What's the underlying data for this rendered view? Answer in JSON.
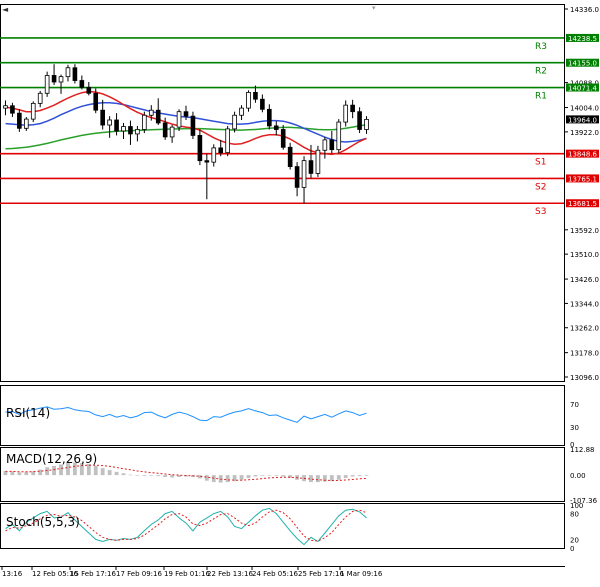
{
  "chart_data": {
    "type": "candlestick",
    "x_tick_labels": [
      "13:16",
      "12 Feb 05:16",
      "15 Feb 17:16",
      "17 Feb 09:16",
      "19 Feb 01:16",
      "22 Feb 13:16",
      "24 Feb 05:16",
      "25 Feb 17:16",
      "1 Mar 09:16"
    ],
    "y_tick_labels": [
      "14336.0",
      "14088.0",
      "14004.0",
      "13922.0",
      "13592.0",
      "13510.0",
      "13426.0",
      "13344.0",
      "13262.0",
      "13178.0",
      "13096.0"
    ],
    "y_range": [
      13096.0,
      14336.0
    ],
    "current_price": "13964.0",
    "levels": [
      {
        "name": "R3",
        "value": 14238.5,
        "label": "14238.5",
        "color": "#008000"
      },
      {
        "name": "R2",
        "value": 14155.0,
        "label": "14155.0",
        "color": "#008000"
      },
      {
        "name": "R1",
        "value": 14071.4,
        "label": "14071.4",
        "color": "#008000"
      },
      {
        "name": "S1",
        "value": 13848.6,
        "label": "13848.6",
        "color": "#e00000"
      },
      {
        "name": "S2",
        "value": 13765.1,
        "label": "13765.1",
        "color": "#e00000"
      },
      {
        "name": "S3",
        "value": 13681.5,
        "label": "13681.5",
        "color": "#e00000"
      }
    ],
    "candles": [
      {
        "o": 14002,
        "h": 14028,
        "l": 13978,
        "c": 14010
      },
      {
        "o": 14010,
        "h": 14020,
        "l": 13972,
        "c": 13985
      },
      {
        "o": 13985,
        "h": 13998,
        "l": 13922,
        "c": 13934
      },
      {
        "o": 13934,
        "h": 13972,
        "l": 13925,
        "c": 13965
      },
      {
        "o": 13965,
        "h": 14025,
        "l": 13955,
        "c": 14018
      },
      {
        "o": 14018,
        "h": 14060,
        "l": 14005,
        "c": 14052
      },
      {
        "o": 14052,
        "h": 14125,
        "l": 14040,
        "c": 14112
      },
      {
        "o": 14112,
        "h": 14150,
        "l": 14080,
        "c": 14090
      },
      {
        "o": 14090,
        "h": 14115,
        "l": 14050,
        "c": 14108
      },
      {
        "o": 14108,
        "h": 14148,
        "l": 14092,
        "c": 14138
      },
      {
        "o": 14138,
        "h": 14150,
        "l": 14085,
        "c": 14095
      },
      {
        "o": 14095,
        "h": 14112,
        "l": 14065,
        "c": 14072
      },
      {
        "o": 14072,
        "h": 14090,
        "l": 14045,
        "c": 14052
      },
      {
        "o": 14052,
        "h": 14068,
        "l": 13985,
        "c": 13995
      },
      {
        "o": 13995,
        "h": 14030,
        "l": 13930,
        "c": 13945
      },
      {
        "o": 13945,
        "h": 13975,
        "l": 13902,
        "c": 13962
      },
      {
        "o": 13962,
        "h": 13985,
        "l": 13910,
        "c": 13925
      },
      {
        "o": 13925,
        "h": 13952,
        "l": 13898,
        "c": 13940
      },
      {
        "o": 13940,
        "h": 13960,
        "l": 13878,
        "c": 13915
      },
      {
        "o": 13915,
        "h": 13942,
        "l": 13890,
        "c": 13930
      },
      {
        "o": 13930,
        "h": 13990,
        "l": 13918,
        "c": 13978
      },
      {
        "o": 13978,
        "h": 14012,
        "l": 13960,
        "c": 13995
      },
      {
        "o": 13995,
        "h": 14035,
        "l": 13945,
        "c": 13952
      },
      {
        "o": 13952,
        "h": 13970,
        "l": 13895,
        "c": 13905
      },
      {
        "o": 13905,
        "h": 13945,
        "l": 13885,
        "c": 13938
      },
      {
        "o": 13938,
        "h": 13998,
        "l": 13925,
        "c": 13990
      },
      {
        "o": 13990,
        "h": 14010,
        "l": 13962,
        "c": 13975
      },
      {
        "o": 13975,
        "h": 13990,
        "l": 13898,
        "c": 13910
      },
      {
        "o": 13910,
        "h": 13930,
        "l": 13810,
        "c": 13825
      },
      {
        "o": 13825,
        "h": 13848,
        "l": 13695,
        "c": 13820
      },
      {
        "o": 13820,
        "h": 13880,
        "l": 13805,
        "c": 13868
      },
      {
        "o": 13868,
        "h": 13895,
        "l": 13840,
        "c": 13852
      },
      {
        "o": 13852,
        "h": 13942,
        "l": 13840,
        "c": 13932
      },
      {
        "o": 13932,
        "h": 13990,
        "l": 13920,
        "c": 13978
      },
      {
        "o": 13978,
        "h": 14012,
        "l": 13962,
        "c": 14002
      },
      {
        "o": 14002,
        "h": 14062,
        "l": 13990,
        "c": 14055
      },
      {
        "o": 14055,
        "h": 14078,
        "l": 14020,
        "c": 14032
      },
      {
        "o": 14032,
        "h": 14048,
        "l": 13988,
        "c": 13998
      },
      {
        "o": 13998,
        "h": 14015,
        "l": 13930,
        "c": 13942
      },
      {
        "o": 13942,
        "h": 13958,
        "l": 13910,
        "c": 13930
      },
      {
        "o": 13930,
        "h": 13945,
        "l": 13862,
        "c": 13870
      },
      {
        "o": 13870,
        "h": 13885,
        "l": 13795,
        "c": 13805
      },
      {
        "o": 13805,
        "h": 13820,
        "l": 13705,
        "c": 13735
      },
      {
        "o": 13735,
        "h": 13840,
        "l": 13680,
        "c": 13825
      },
      {
        "o": 13825,
        "h": 13878,
        "l": 13765,
        "c": 13782
      },
      {
        "o": 13782,
        "h": 13875,
        "l": 13770,
        "c": 13860
      },
      {
        "o": 13860,
        "h": 13905,
        "l": 13832,
        "c": 13895
      },
      {
        "o": 13895,
        "h": 13925,
        "l": 13850,
        "c": 13862
      },
      {
        "o": 13862,
        "h": 13965,
        "l": 13850,
        "c": 13955
      },
      {
        "o": 13955,
        "h": 14028,
        "l": 13940,
        "c": 14012
      },
      {
        "o": 14012,
        "h": 14030,
        "l": 13968,
        "c": 13990
      },
      {
        "o": 13990,
        "h": 14005,
        "l": 13918,
        "c": 13930
      },
      {
        "o": 13930,
        "h": 13975,
        "l": 13915,
        "c": 13964
      }
    ],
    "ma_fast": [
      14005,
      14002,
      13996,
      13990,
      13990,
      13994,
      14002,
      14012,
      14024,
      14036,
      14046,
      14054,
      14058,
      14056,
      14050,
      14040,
      14028,
      14014,
      14000,
      13988,
      13978,
      13970,
      13964,
      13956,
      13948,
      13942,
      13938,
      13935,
      13928,
      13915,
      13902,
      13892,
      13884,
      13880,
      13882,
      13890,
      13900,
      13908,
      13912,
      13912,
      13908,
      13898,
      13884,
      13870,
      13858,
      13852,
      13848,
      13846,
      13850,
      13862,
      13876,
      13890,
      13900
    ],
    "ma_mid": [
      13950,
      13948,
      13946,
      13944,
      13946,
      13950,
      13958,
      13968,
      13980,
      13990,
      14000,
      14008,
      14014,
      14018,
      14020,
      14020,
      14018,
      14014,
      14008,
      14002,
      13996,
      13990,
      13986,
      13982,
      13978,
      13974,
      13972,
      13970,
      13966,
      13962,
      13958,
      13954,
      13950,
      13948,
      13948,
      13950,
      13954,
      13958,
      13960,
      13960,
      13958,
      13952,
      13944,
      13934,
      13924,
      13914,
      13904,
      13896,
      13890,
      13888,
      13890,
      13894,
      13900
    ],
    "ma_slow": [
      13865,
      13866,
      13868,
      13870,
      13874,
      13878,
      13883,
      13889,
      13895,
      13900,
      13905,
      13910,
      13914,
      13917,
      13920,
      13922,
      13924,
      13925,
      13926,
      13927,
      13928,
      13929,
      13930,
      13931,
      13932,
      13932,
      13933,
      13933,
      13933,
      13932,
      13931,
      13930,
      13929,
      13928,
      13928,
      13929,
      13930,
      13932,
      13934,
      13936,
      13937,
      13937,
      13936,
      13934,
      13932,
      13930,
      13929,
      13929,
      13931,
      13934,
      13938,
      13942,
      13946
    ],
    "rsi": {
      "label": "RSI(14)",
      "levels": [
        "70",
        "30",
        "0"
      ],
      "values": [
        56,
        57,
        52,
        58,
        60,
        63,
        65,
        61,
        62,
        64,
        60,
        58,
        57,
        51,
        48,
        52,
        47,
        50,
        46,
        49,
        55,
        56,
        50,
        46,
        52,
        56,
        53,
        48,
        42,
        41,
        48,
        47,
        52,
        56,
        58,
        62,
        58,
        55,
        50,
        51,
        46,
        42,
        38,
        49,
        44,
        48,
        52,
        47,
        53,
        58,
        55,
        50,
        54
      ]
    },
    "macd": {
      "label": "MACD(12,26,9)",
      "ticks": [
        "112.88",
        "0.00",
        "-107.36"
      ],
      "histogram": [
        18,
        16,
        12,
        13,
        16,
        24,
        34,
        40,
        46,
        52,
        54,
        52,
        48,
        40,
        30,
        22,
        14,
        8,
        2,
        -2,
        -3,
        -2,
        -4,
        -8,
        -10,
        -8,
        -6,
        -8,
        -14,
        -24,
        -30,
        -32,
        -30,
        -26,
        -20,
        -12,
        -6,
        -2,
        -1,
        -3,
        -6,
        -12,
        -20,
        -26,
        -30,
        -30,
        -28,
        -26,
        -20,
        -12,
        -6,
        -4,
        -3
      ],
      "signal": [
        16,
        16,
        15,
        15,
        15,
        17,
        20,
        24,
        29,
        33,
        38,
        41,
        43,
        43,
        41,
        38,
        33,
        28,
        23,
        18,
        14,
        11,
        8,
        5,
        2,
        0,
        -2,
        -3,
        -5,
        -9,
        -13,
        -17,
        -20,
        -22,
        -22,
        -20,
        -18,
        -15,
        -12,
        -10,
        -9,
        -9,
        -11,
        -14,
        -17,
        -20,
        -22,
        -23,
        -23,
        -21,
        -19,
        -16,
        -14
      ]
    },
    "stoch": {
      "label": "Stoch(5,5,3)",
      "levels": [
        "100",
        "80",
        "20",
        "0"
      ],
      "k": [
        45,
        55,
        40,
        60,
        70,
        80,
        85,
        70,
        72,
        82,
        65,
        50,
        35,
        20,
        15,
        20,
        18,
        22,
        20,
        25,
        40,
        55,
        65,
        80,
        85,
        70,
        58,
        40,
        60,
        70,
        80,
        85,
        72,
        50,
        45,
        60,
        75,
        88,
        92,
        80,
        60,
        40,
        22,
        8,
        25,
        15,
        35,
        55,
        75,
        88,
        90,
        84,
        70
      ],
      "d": [
        40,
        48,
        46,
        52,
        58,
        68,
        76,
        78,
        74,
        76,
        72,
        64,
        50,
        36,
        25,
        20,
        18,
        20,
        20,
        22,
        30,
        42,
        54,
        68,
        78,
        80,
        72,
        56,
        52,
        58,
        68,
        78,
        80,
        70,
        58,
        52,
        58,
        72,
        84,
        88,
        82,
        68,
        48,
        28,
        18,
        16,
        24,
        36,
        55,
        72,
        85,
        88,
        82
      ]
    }
  }
}
